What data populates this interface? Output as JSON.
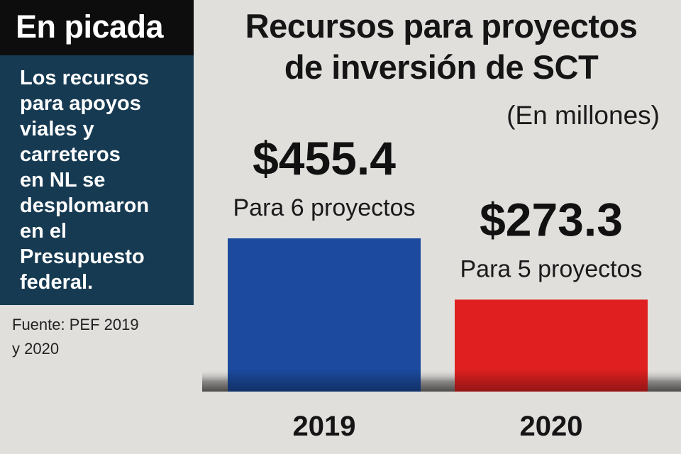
{
  "sidebar": {
    "heading": "En picada",
    "body": "Los recursos\npara apoyos\nviales y\ncarreteros\nen NL se\ndesplomaron\nen el\nPresupuesto\nfederal.",
    "source": "Fuente: PEF 2019\ny 2020"
  },
  "chart_data": {
    "type": "bar",
    "title": "Recursos para proyectos\nde inversión de SCT",
    "subtitle": "(En millones)",
    "categories": [
      "2019",
      "2020"
    ],
    "values": [
      455.4,
      273.3
    ],
    "value_labels": [
      "$455.4",
      "$273.3"
    ],
    "annotations": [
      "Para 6 proyectos",
      "Para 5 proyectos"
    ],
    "colors": [
      "#1b4a9e",
      "#e02020"
    ],
    "ylim": [
      0,
      455.4
    ],
    "xlabel": "",
    "ylabel": "",
    "grid": false,
    "legend": "none"
  }
}
